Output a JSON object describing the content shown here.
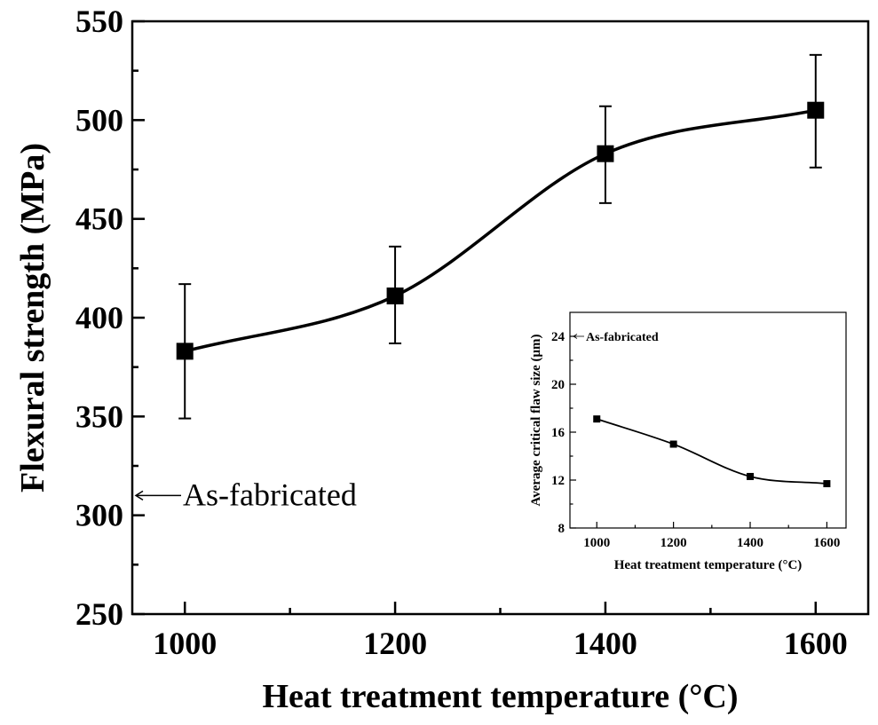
{
  "chart_data": [
    {
      "type": "line",
      "x": [
        1000,
        1200,
        1400,
        1600
      ],
      "y": [
        383,
        411,
        483,
        505
      ],
      "yerr_upper": [
        417,
        436,
        507,
        533
      ],
      "yerr_lower": [
        349,
        387,
        458,
        476
      ],
      "xlabel": "Heat treatment temperature (°C)",
      "ylabel": "Flexural strength (MPa)",
      "xlim": [
        950,
        1650
      ],
      "ylim": [
        250,
        550
      ],
      "xticks": [
        1000,
        1200,
        1400,
        1600
      ],
      "yticks": [
        250,
        300,
        350,
        400,
        450,
        500,
        550
      ],
      "marker": "square",
      "color": "#000000",
      "grid": false,
      "annotation": {
        "text": "As-fabricated",
        "value": 310
      }
    },
    {
      "type": "line",
      "x": [
        1000,
        1200,
        1400,
        1600
      ],
      "y": [
        17.1,
        15.0,
        12.3,
        11.7
      ],
      "xlabel": "Heat treatment temperature (°C)",
      "ylabel": "Average critical flaw size (μm)",
      "xlim": [
        930,
        1650
      ],
      "ylim": [
        8,
        26
      ],
      "xticks": [
        1000,
        1200,
        1400,
        1600
      ],
      "yticks": [
        8,
        12,
        16,
        20,
        24
      ],
      "marker": "square",
      "color": "#000000",
      "grid": false,
      "annotation": {
        "text": "As-fabricated",
        "value": 24
      }
    }
  ]
}
